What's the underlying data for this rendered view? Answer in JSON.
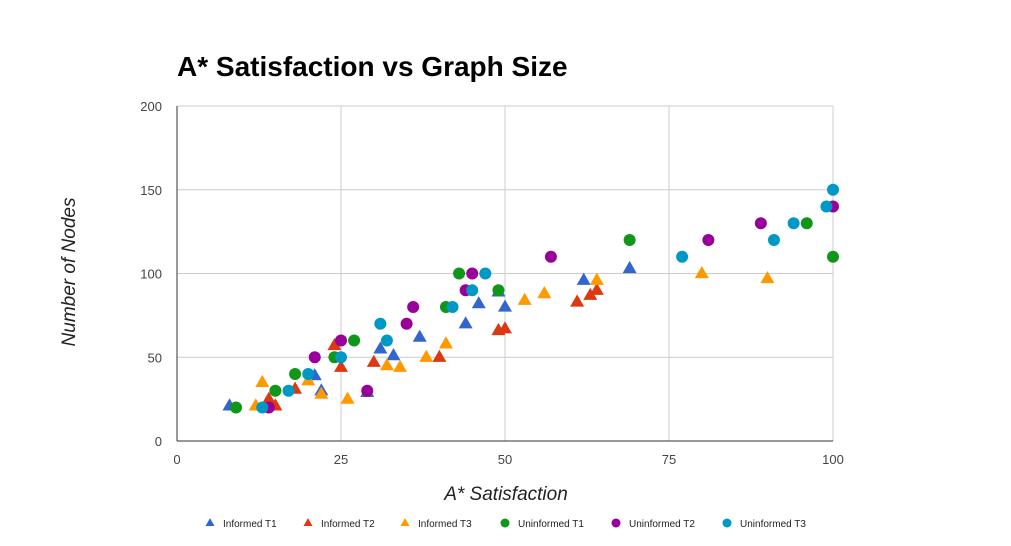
{
  "chart_data": {
    "type": "scatter",
    "title": "A* Satisfaction vs Graph Size",
    "xlabel": "A* Satisfaction",
    "ylabel": "Number of Nodes",
    "xlim": [
      0,
      100
    ],
    "ylim": [
      0,
      200
    ],
    "x_ticks": [
      "0",
      "25",
      "50",
      "75",
      "100"
    ],
    "y_ticks": [
      "0",
      "50",
      "100",
      "150",
      "200"
    ],
    "grid": true,
    "legend_position": "bottom",
    "series": [
      {
        "name": "Informed T1",
        "marker": "triangle",
        "color": "#3366cc",
        "points": [
          [
            8,
            21
          ],
          [
            21,
            39
          ],
          [
            22,
            30
          ],
          [
            29,
            29
          ],
          [
            31,
            55
          ],
          [
            33,
            51
          ],
          [
            37,
            62
          ],
          [
            44,
            70
          ],
          [
            46,
            82
          ],
          [
            49,
            89
          ],
          [
            50,
            80
          ],
          [
            62,
            96
          ],
          [
            69,
            103
          ]
        ]
      },
      {
        "name": "Informed T2",
        "marker": "triangle",
        "color": "#dc3912",
        "points": [
          [
            14,
            25
          ],
          [
            15,
            21
          ],
          [
            18,
            31
          ],
          [
            24,
            57
          ],
          [
            25,
            44
          ],
          [
            30,
            47
          ],
          [
            40,
            50
          ],
          [
            49,
            66
          ],
          [
            50,
            67
          ],
          [
            61,
            83
          ],
          [
            63,
            87
          ],
          [
            64,
            90
          ]
        ]
      },
      {
        "name": "Informed T3",
        "marker": "triangle",
        "color": "#ff9900",
        "points": [
          [
            12,
            21
          ],
          [
            13,
            35
          ],
          [
            20,
            36
          ],
          [
            22,
            28
          ],
          [
            26,
            25
          ],
          [
            32,
            45
          ],
          [
            34,
            44
          ],
          [
            38,
            50
          ],
          [
            41,
            58
          ],
          [
            53,
            84
          ],
          [
            56,
            88
          ],
          [
            64,
            96
          ],
          [
            80,
            100
          ],
          [
            90,
            97
          ]
        ]
      },
      {
        "name": "Uninformed T1",
        "marker": "circle",
        "color": "#109618",
        "points": [
          [
            9,
            20
          ],
          [
            15,
            30
          ],
          [
            18,
            40
          ],
          [
            24,
            50
          ],
          [
            27,
            60
          ],
          [
            41,
            80
          ],
          [
            43,
            100
          ],
          [
            49,
            90
          ],
          [
            69,
            120
          ],
          [
            96,
            130
          ],
          [
            100,
            110
          ]
        ]
      },
      {
        "name": "Uninformed T2",
        "marker": "circle",
        "color": "#990099",
        "points": [
          [
            14,
            20
          ],
          [
            21,
            50
          ],
          [
            25,
            60
          ],
          [
            29,
            30
          ],
          [
            35,
            70
          ],
          [
            36,
            80
          ],
          [
            44,
            90
          ],
          [
            45,
            100
          ],
          [
            57,
            110
          ],
          [
            81,
            120
          ],
          [
            89,
            130
          ],
          [
            100,
            140
          ]
        ]
      },
      {
        "name": "Uninformed T3",
        "marker": "circle",
        "color": "#0099c6",
        "points": [
          [
            13,
            20
          ],
          [
            17,
            30
          ],
          [
            20,
            40
          ],
          [
            25,
            50
          ],
          [
            31,
            70
          ],
          [
            32,
            60
          ],
          [
            42,
            80
          ],
          [
            45,
            90
          ],
          [
            47,
            100
          ],
          [
            77,
            110
          ],
          [
            91,
            120
          ],
          [
            94,
            130
          ],
          [
            99,
            140
          ],
          [
            100,
            150
          ]
        ]
      }
    ]
  }
}
